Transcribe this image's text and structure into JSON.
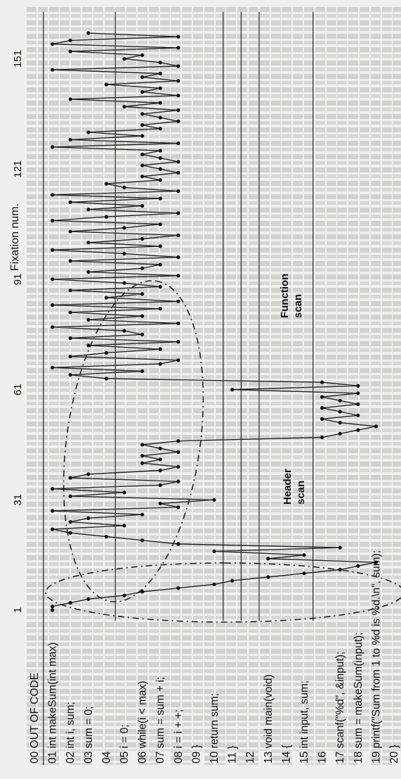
{
  "chart_data": {
    "type": "line",
    "x_axis_title": "Fixation num.",
    "x_ticks": [
      1,
      31,
      61,
      91,
      121,
      151
    ],
    "code_lines": [
      "00 OUT OF CODE",
      "01 int makeSum(int max)",
      "02   int i, sum;",
      "03   sum = 0;",
      "04",
      "05   i = 0;",
      "06   while(i < max)",
      "07     sum = sum + i;",
      "08     i = i + +;",
      "09   }",
      "10   return sum;",
      "11 }",
      "12",
      "13 void main(void)",
      "14 {",
      "15   int input, sum;",
      "16",
      "17   scanf(\"%d\", &input);",
      "18   sum = makeSum(input);",
      "19   printf(\"Sum from 1 to %d is %d.\\n\", sum);",
      "20 }"
    ],
    "series": [
      {
        "x": [
          1,
          2,
          3,
          4,
          5,
          6,
          7,
          8,
          9,
          10,
          11,
          12,
          13,
          14,
          15,
          16,
          17,
          18,
          19,
          20,
          21,
          22,
          23,
          24,
          25,
          26,
          27,
          28,
          29,
          30,
          31,
          32,
          33,
          34,
          35,
          36,
          37,
          38,
          39,
          40,
          41,
          42,
          43,
          44,
          45,
          46,
          47,
          48,
          49,
          50,
          51,
          52,
          53,
          54,
          55,
          56,
          57,
          58,
          59,
          60,
          61,
          62,
          63,
          64,
          65,
          66,
          67,
          68,
          69,
          70,
          71,
          72,
          73,
          74,
          75,
          76,
          77,
          78,
          79,
          80,
          81,
          82,
          83,
          84,
          85,
          86,
          87,
          88,
          89,
          90,
          91,
          92,
          93,
          94,
          95,
          96,
          97,
          98,
          99,
          100,
          101,
          102,
          103,
          104,
          105,
          106,
          107,
          108,
          109,
          110,
          111,
          112,
          113,
          114,
          115,
          116,
          117,
          118,
          119,
          120,
          121,
          122,
          123,
          124,
          125,
          126,
          127,
          128,
          129,
          130,
          131,
          132,
          133,
          134,
          135,
          136,
          137,
          138,
          139,
          140,
          141,
          142,
          143,
          144,
          145,
          146,
          147,
          148,
          149,
          150,
          151,
          152,
          153,
          154,
          155,
          156,
          157,
          158
        ],
        "y": [
          1,
          1,
          2,
          3,
          5,
          6,
          8,
          10,
          11,
          13,
          15,
          17,
          18,
          19,
          13,
          15,
          10,
          17,
          8,
          6,
          4,
          2,
          1,
          5,
          2,
          3,
          6,
          1,
          8,
          7,
          10,
          2,
          5,
          1,
          7,
          8,
          2,
          3,
          7,
          8,
          6,
          7,
          6,
          8,
          7,
          6,
          8,
          16,
          17,
          18,
          19,
          17,
          16,
          18,
          17,
          16,
          18,
          17,
          16,
          18,
          11,
          18,
          16,
          4,
          2,
          6,
          1,
          7,
          8,
          2,
          4,
          7,
          3,
          8,
          2,
          6,
          5,
          1,
          8,
          3,
          6,
          2,
          7,
          1,
          8,
          4,
          6,
          2,
          7,
          5,
          1,
          8,
          3,
          6,
          7,
          2,
          8,
          5,
          1,
          7,
          3,
          6,
          8,
          2,
          5,
          7,
          1,
          4,
          8,
          3,
          6,
          2,
          7,
          1,
          8,
          5,
          4,
          7,
          6,
          8,
          7,
          6,
          8,
          7,
          6,
          7,
          1,
          8,
          2,
          6,
          3,
          7,
          6,
          8,
          7,
          6,
          8,
          5,
          7,
          2,
          8,
          6,
          7,
          4,
          8,
          6,
          7,
          1,
          8,
          7,
          5,
          6,
          2,
          8,
          1,
          2,
          8,
          3
        ]
      }
    ],
    "annotations": [
      {
        "label_lines": [
          "Header",
          "scan"
        ]
      },
      {
        "label_lines": [
          "Function",
          "scan"
        ]
      }
    ],
    "xlim": [
      0,
      158
    ],
    "ylim": [
      0,
      20
    ]
  }
}
